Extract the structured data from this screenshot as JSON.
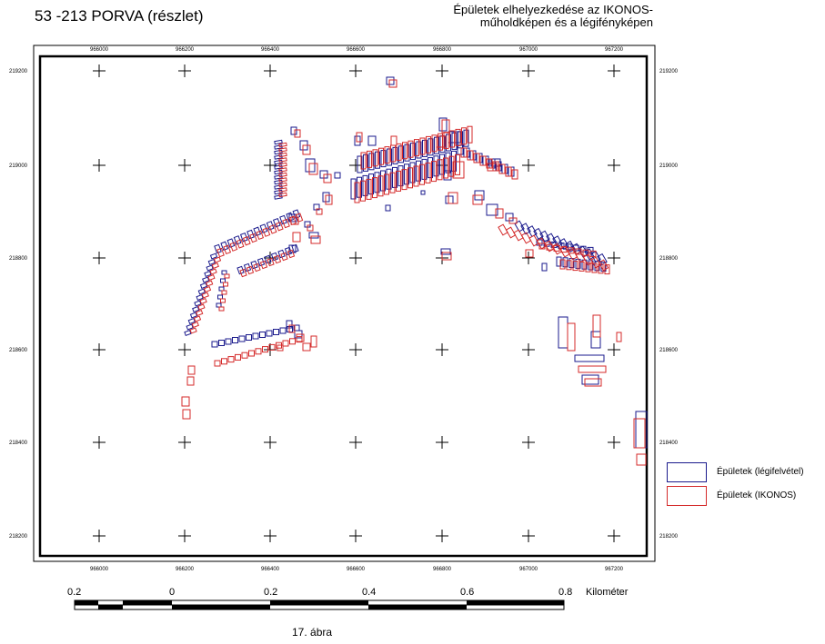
{
  "title": "53 -213 PORVA (részlet)",
  "subtitle_line1": "Épületek elhelyezkedése az IKONOS-",
  "subtitle_line2": "műholdképen és a légifényképen",
  "axes": {
    "x_ticks": [
      "966000",
      "966200",
      "966400",
      "966600",
      "966800",
      "967000",
      "967200"
    ],
    "y_ticks": [
      "219200",
      "219000",
      "218800",
      "218600",
      "218400",
      "218200"
    ]
  },
  "colors": {
    "aerial": "#1a1a8c",
    "ikonos": "#d42a2a",
    "frame": "#000000"
  },
  "legend": {
    "aerial_label": "Épületek (légifelvétel)",
    "ikonos_label": "Épületek (IKONOS)"
  },
  "scale_bar": {
    "labels": [
      "0.2",
      "0",
      "0.2",
      "0.4",
      "0.6",
      "0.8"
    ],
    "unit": "Kilométer"
  },
  "figure_label": "17. ábra"
}
